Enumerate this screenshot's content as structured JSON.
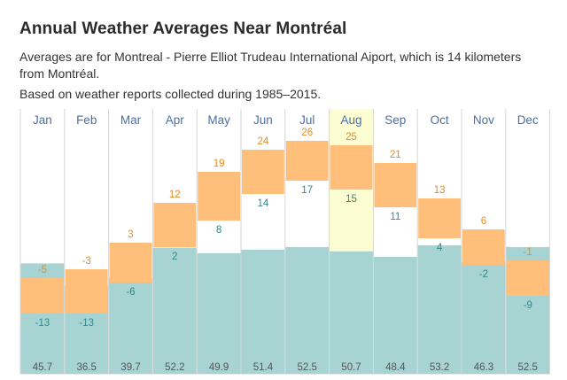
{
  "page": {
    "title": "Annual Weather Averages Near Montréal",
    "description": "Averages are for Montreal - Pierre Elliot Trudeau International Aiport, which is 14 kilometers from Montréal.",
    "basis": "Based on weather reports collected during 1985–2015."
  },
  "colors": {
    "temp_range": "#ffbf7a",
    "high_label": "#e88a1e",
    "low_label": "#2c8a8f",
    "precip": "#a8d3d3",
    "highlight": "#fdfdd4",
    "month_label": "#4a6fa5",
    "grid": "#d6d6d6",
    "precip_label": "#555555"
  },
  "chart_data": {
    "type": "bar",
    "categories": [
      "Jan",
      "Feb",
      "Mar",
      "Apr",
      "May",
      "Jun",
      "Jul",
      "Aug",
      "Sep",
      "Oct",
      "Nov",
      "Dec"
    ],
    "highlighted_category": "Aug",
    "series": [
      {
        "values": [
          -5,
          -3,
          3,
          12,
          19,
          24,
          26,
          25,
          21,
          13,
          6,
          -1
        ]
      },
      {
        "values": [
          -13,
          -13,
          -6,
          2,
          8,
          14,
          17,
          15,
          11,
          4,
          -2,
          -9
        ]
      },
      {
        "values": [
          45.7,
          36.5,
          39.7,
          52.2,
          49.9,
          51.4,
          52.5,
          50.7,
          48.4,
          53.2,
          46.3,
          52.5
        ]
      }
    ],
    "temp_range": [
      -24,
      33
    ],
    "precip_range": [
      0,
      110
    ],
    "grid": "vertical"
  }
}
